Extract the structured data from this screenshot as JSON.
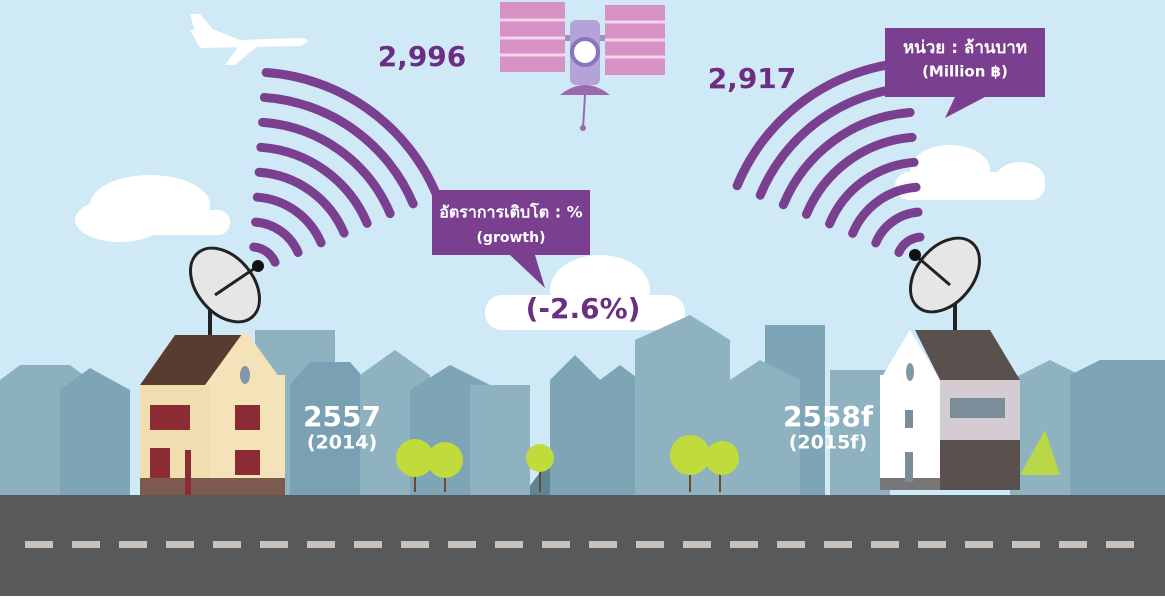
{
  "value_2014": "2,996",
  "value_2015": "2,917",
  "unit": {
    "thai": "หน่วย : ล้านบาท",
    "english": "(Million ฿)"
  },
  "growth": {
    "thai": "อัตราการเติบโต : %",
    "english": "(growth)",
    "value": "(-2.6%)"
  },
  "year_left": {
    "thai": "2557",
    "english": "(2014)"
  },
  "year_right": {
    "thai": "2558f",
    "english": "(2015f)"
  }
}
